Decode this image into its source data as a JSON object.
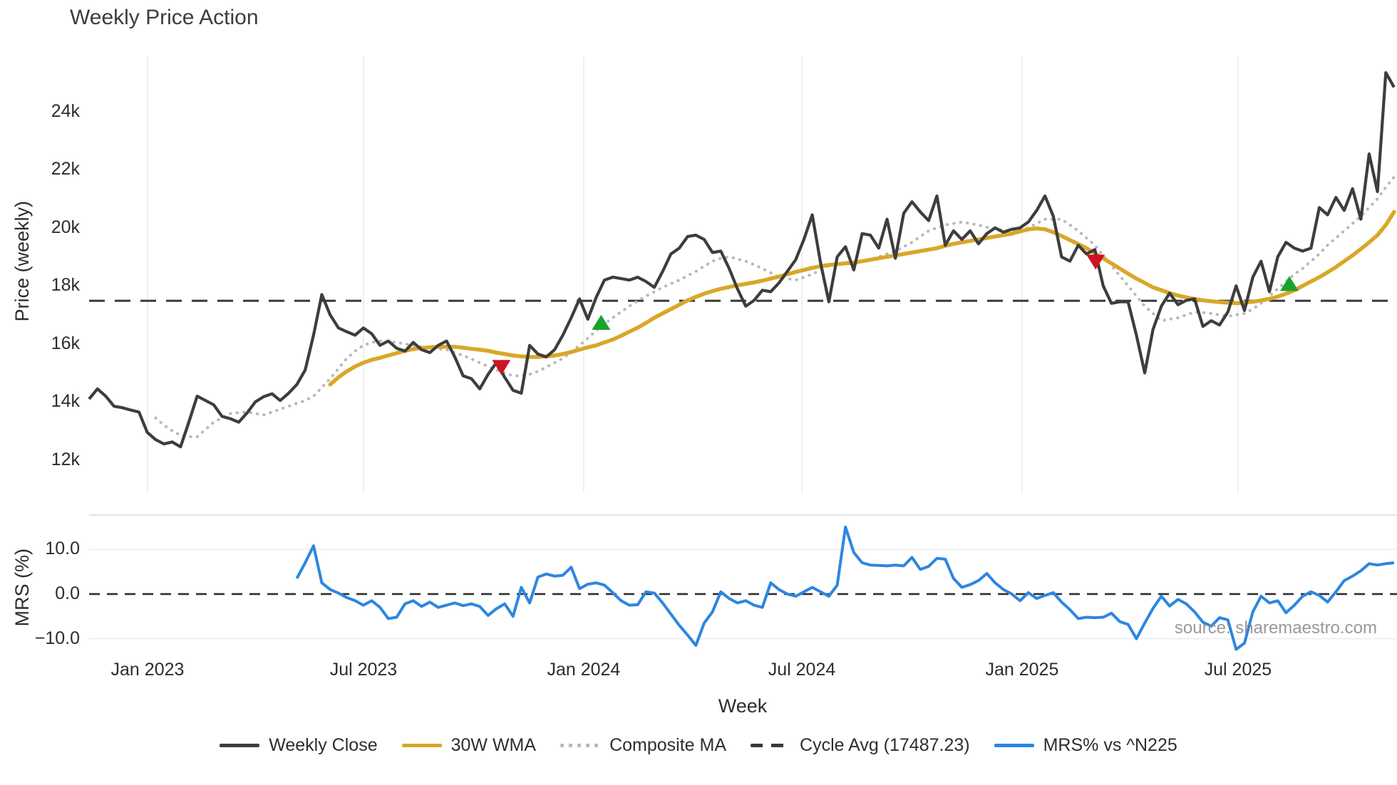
{
  "title": "Weekly Price Action",
  "watermark": "source: sharemaestro.com",
  "colors": {
    "weekly_close": "#3d3d3d",
    "wma_30w": "#d9a728",
    "composite_ma": "#b9b9b9",
    "cycle_avg": "#3a3a3a",
    "mrs": "#2d86e0",
    "buy_marker": "#1aa22c",
    "sell_marker": "#cf1220",
    "gridline": "#ededf1",
    "panel_border": "#d9d9de",
    "text": "#2d2d2d"
  },
  "axis": {
    "y_price": {
      "label": "Price (weekly)",
      "ticks": [
        {
          "label": "24k",
          "value": 24
        },
        {
          "label": "22k",
          "value": 22
        },
        {
          "label": "20k",
          "value": 20
        },
        {
          "label": "18k",
          "value": 18
        },
        {
          "label": "16k",
          "value": 16
        },
        {
          "label": "14k",
          "value": 14
        },
        {
          "label": "12k",
          "value": 12
        }
      ]
    },
    "y_mrs": {
      "label": "MRS (%)",
      "ticks": [
        {
          "label": "10.0",
          "value": 10
        },
        {
          "label": "0.0",
          "value": 0
        },
        {
          "label": "−10.0",
          "value": -10
        }
      ]
    },
    "x": {
      "label": "Week",
      "ticks": [
        {
          "label": "Jan 2023",
          "week": 7.03
        },
        {
          "label": "Jul 2023",
          "week": 33.01
        },
        {
          "label": "Jan 2024",
          "week": 59.5
        },
        {
          "label": "Jul 2024",
          "week": 85.75
        },
        {
          "label": "Jan 2025",
          "week": 112.24
        },
        {
          "label": "Jul 2025",
          "week": 138.22
        }
      ]
    }
  },
  "legend": {
    "items": [
      {
        "label": "Weekly Close",
        "swatch": "solid",
        "color": "#3d3d3d"
      },
      {
        "label": "30W WMA",
        "swatch": "solid",
        "color": "#d9a728"
      },
      {
        "label": "Composite MA",
        "swatch": "dotted",
        "color": "#b9b9b9"
      },
      {
        "label": "Cycle Avg (17487.23)",
        "swatch": "dashed",
        "color": "#3a3a3a"
      },
      {
        "label": "MRS% vs ^N225",
        "swatch": "solid",
        "color": "#2d86e0"
      }
    ]
  },
  "chart_data": {
    "type": "line",
    "title": "Weekly Price Action",
    "x_unit": "week index (weekly data starting Nov 2022; Jan 2023 at week 7)",
    "price_unit": "thousands",
    "cycle_avg_value": 17487.23,
    "panels": [
      {
        "name": "price",
        "ylabel": "Price (weekly)",
        "ylim_thousands": [
          11.7,
          25.9
        ],
        "series": [
          {
            "name": "Weekly Close",
            "style": "solid",
            "color": "#3d3d3d",
            "start_week": 0,
            "values": [
              14.1,
              14.45,
              14.2,
              13.85,
              13.8,
              13.72,
              13.65,
              12.95,
              12.7,
              12.55,
              12.62,
              12.45,
              13.3,
              14.2,
              14.05,
              13.9,
              13.5,
              13.42,
              13.3,
              13.62,
              14.0,
              14.18,
              14.28,
              14.05,
              14.3,
              14.6,
              15.1,
              16.3,
              17.7,
              17.0,
              16.55,
              16.42,
              16.3,
              16.55,
              16.35,
              15.95,
              16.1,
              15.85,
              15.75,
              16.05,
              15.8,
              15.7,
              15.95,
              16.1,
              15.55,
              14.9,
              14.8,
              14.45,
              14.95,
              15.35,
              14.85,
              14.4,
              14.3,
              15.95,
              15.65,
              15.55,
              15.8,
              16.3,
              16.9,
              17.55,
              16.85,
              17.6,
              18.2,
              18.3,
              18.25,
              18.2,
              18.3,
              18.15,
              17.95,
              18.5,
              19.1,
              19.3,
              19.7,
              19.75,
              19.6,
              19.15,
              19.2,
              18.6,
              17.9,
              17.3,
              17.5,
              17.85,
              17.8,
              18.1,
              18.5,
              18.9,
              19.6,
              20.45,
              18.8,
              17.45,
              19.0,
              19.35,
              18.55,
              19.8,
              19.75,
              19.3,
              20.3,
              18.95,
              20.5,
              20.9,
              20.55,
              20.25,
              21.1,
              19.4,
              19.9,
              19.6,
              19.9,
              19.45,
              19.8,
              20.0,
              19.85,
              19.95,
              20.0,
              20.2,
              20.6,
              21.1,
              20.4,
              19.0,
              18.85,
              19.4,
              19.1,
              19.25,
              18.0,
              17.4,
              17.45,
              17.45,
              16.3,
              15.0,
              16.5,
              17.3,
              17.75,
              17.35,
              17.5,
              17.55,
              16.6,
              16.8,
              16.65,
              17.1,
              18.0,
              17.15,
              18.3,
              18.85,
              17.8,
              19.0,
              19.5,
              19.3,
              19.2,
              19.3,
              20.7,
              20.45,
              21.05,
              20.6,
              21.35,
              20.3,
              22.55,
              21.25,
              25.35,
              24.85
            ]
          },
          {
            "name": "30W WMA",
            "style": "solid",
            "color": "#d9a728",
            "start_week": 29,
            "values": [
              14.6,
              14.85,
              15.05,
              15.22,
              15.35,
              15.45,
              15.52,
              15.6,
              15.68,
              15.76,
              15.82,
              15.86,
              15.88,
              15.9,
              15.9,
              15.9,
              15.87,
              15.83,
              15.8,
              15.76,
              15.7,
              15.65,
              15.6,
              15.57,
              15.55,
              15.55,
              15.57,
              15.6,
              15.65,
              15.72,
              15.8,
              15.88,
              15.95,
              16.05,
              16.15,
              16.28,
              16.42,
              16.56,
              16.72,
              16.9,
              17.05,
              17.2,
              17.35,
              17.5,
              17.62,
              17.73,
              17.82,
              17.9,
              17.96,
              18.02,
              18.07,
              18.12,
              18.18,
              18.25,
              18.32,
              18.4,
              18.48,
              18.55,
              18.62,
              18.68,
              18.72,
              18.75,
              18.78,
              18.8,
              18.85,
              18.9,
              18.95,
              19.0,
              19.05,
              19.1,
              19.15,
              19.2,
              19.25,
              19.3,
              19.38,
              19.45,
              19.5,
              19.55,
              19.6,
              19.65,
              19.7,
              19.75,
              19.8,
              19.88,
              19.95,
              19.98,
              19.95,
              19.85,
              19.72,
              19.58,
              19.44,
              19.3,
              19.12,
              18.95,
              18.78,
              18.6,
              18.42,
              18.25,
              18.1,
              17.95,
              17.85,
              17.75,
              17.67,
              17.6,
              17.55,
              17.5,
              17.47,
              17.44,
              17.42,
              17.4,
              17.42,
              17.45,
              17.5,
              17.55,
              17.63,
              17.73,
              17.85,
              18.0,
              18.15,
              18.3,
              18.47,
              18.65,
              18.85,
              19.05,
              19.27,
              19.5,
              19.75,
              20.1,
              20.55
            ]
          },
          {
            "name": "Composite MA",
            "style": "dotted",
            "color": "#b9b9b9",
            "start_week": 8,
            "values": [
              13.45,
              13.2,
              13.0,
              12.85,
              12.8,
              12.8,
              13.05,
              13.3,
              13.45,
              13.6,
              13.63,
              13.65,
              13.6,
              13.55,
              13.65,
              13.75,
              13.85,
              13.95,
              14.05,
              14.2,
              14.5,
              14.8,
              15.15,
              15.5,
              15.75,
              15.95,
              16.05,
              16.1,
              16.08,
              16.05,
              16.0,
              15.95,
              15.9,
              15.85,
              15.82,
              15.8,
              15.7,
              15.6,
              15.48,
              15.35,
              15.22,
              15.1,
              15.0,
              14.9,
              14.9,
              14.95,
              15.05,
              15.2,
              15.35,
              15.5,
              15.72,
              15.95,
              16.2,
              16.45,
              16.68,
              16.9,
              17.1,
              17.3,
              17.48,
              17.65,
              17.8,
              17.95,
              18.08,
              18.2,
              18.35,
              18.5,
              18.68,
              18.85,
              18.95,
              19.0,
              18.93,
              18.85,
              18.73,
              18.6,
              18.45,
              18.3,
              18.25,
              18.2,
              18.3,
              18.4,
              18.55,
              18.7,
              18.75,
              18.8,
              18.82,
              18.85,
              18.92,
              19.0,
              19.1,
              19.2,
              19.35,
              19.5,
              19.7,
              19.9,
              20.0,
              20.1,
              20.15,
              20.2,
              20.15,
              20.1,
              20.02,
              19.95,
              19.92,
              19.9,
              19.95,
              20.0,
              20.15,
              20.3,
              20.3,
              20.3,
              20.1,
              19.9,
              19.65,
              19.4,
              19.05,
              18.7,
              18.35,
              18.0,
              17.65,
              17.3,
              17.05,
              16.8,
              16.85,
              16.9,
              17.0,
              17.1,
              17.08,
              17.05,
              17.0,
              16.95,
              17.0,
              17.05,
              17.2,
              17.4,
              17.65,
              17.9,
              18.15,
              18.4,
              18.6,
              18.85,
              19.1,
              19.4,
              19.65,
              19.9,
              20.15,
              20.4,
              20.7,
              21.0,
              21.4,
              21.75
            ]
          }
        ],
        "markers": {
          "buy_signals": [
            {
              "week": 61.6,
              "price_thousands": 16.73
            },
            {
              "week": 144.4,
              "price_thousands": 18.07
            }
          ],
          "sell_signals": [
            {
              "week": 49.6,
              "price_thousands": 15.2
            },
            {
              "week": 121.1,
              "price_thousands": 18.83
            }
          ]
        }
      },
      {
        "name": "mrs",
        "ylabel": "MRS (%)",
        "ylim": [
          -13.9,
          17.7
        ],
        "zero_line": true,
        "series": [
          {
            "name": "MRS% vs ^N225",
            "style": "solid",
            "color": "#2d86e0",
            "start_week": 25,
            "values": [
              3.5,
              7.0,
              10.8,
              2.5,
              1.0,
              0.2,
              -0.8,
              -1.5,
              -2.5,
              -1.5,
              -3.0,
              -5.5,
              -5.2,
              -2.2,
              -1.5,
              -2.8,
              -1.8,
              -3.0,
              -2.5,
              -2.0,
              -2.6,
              -2.2,
              -2.8,
              -4.8,
              -3.3,
              -2.2,
              -5.0,
              1.5,
              -2.0,
              3.8,
              4.5,
              4.0,
              4.2,
              6.0,
              1.2,
              2.2,
              2.5,
              2.0,
              0.3,
              -1.5,
              -2.5,
              -2.4,
              0.5,
              0.2,
              -2.0,
              -4.5,
              -7.0,
              -9.2,
              -11.5,
              -6.5,
              -4.0,
              0.5,
              -1.0,
              -2.0,
              -1.5,
              -2.5,
              -3.0,
              2.5,
              1.0,
              0.0,
              -0.5,
              0.5,
              1.5,
              0.5,
              -0.5,
              2.0,
              15.0,
              9.3,
              7.0,
              6.5,
              6.4,
              6.3,
              6.5,
              6.3,
              8.2,
              5.5,
              6.2,
              8.0,
              7.8,
              3.5,
              1.5,
              2.1,
              3.0,
              4.6,
              2.5,
              1.0,
              0.0,
              -1.5,
              0.3,
              -1.0,
              -0.3,
              0.3,
              -1.8,
              -3.5,
              -5.5,
              -5.2,
              -5.3,
              -5.2,
              -4.3,
              -6.2,
              -6.8,
              -10.0,
              -6.5,
              -3.2,
              -0.5,
              -2.7,
              -1.2,
              -2.2,
              -4.0,
              -6.3,
              -7.2,
              -5.3,
              -5.8,
              -12.4,
              -11.0,
              -4.0,
              -0.5,
              -2.0,
              -1.5,
              -4.2,
              -2.5,
              -0.5,
              0.5,
              -0.3,
              -1.8,
              0.5,
              3.0,
              4.0,
              5.2,
              6.8,
              6.5,
              6.8,
              7.0
            ]
          }
        ]
      }
    ]
  }
}
